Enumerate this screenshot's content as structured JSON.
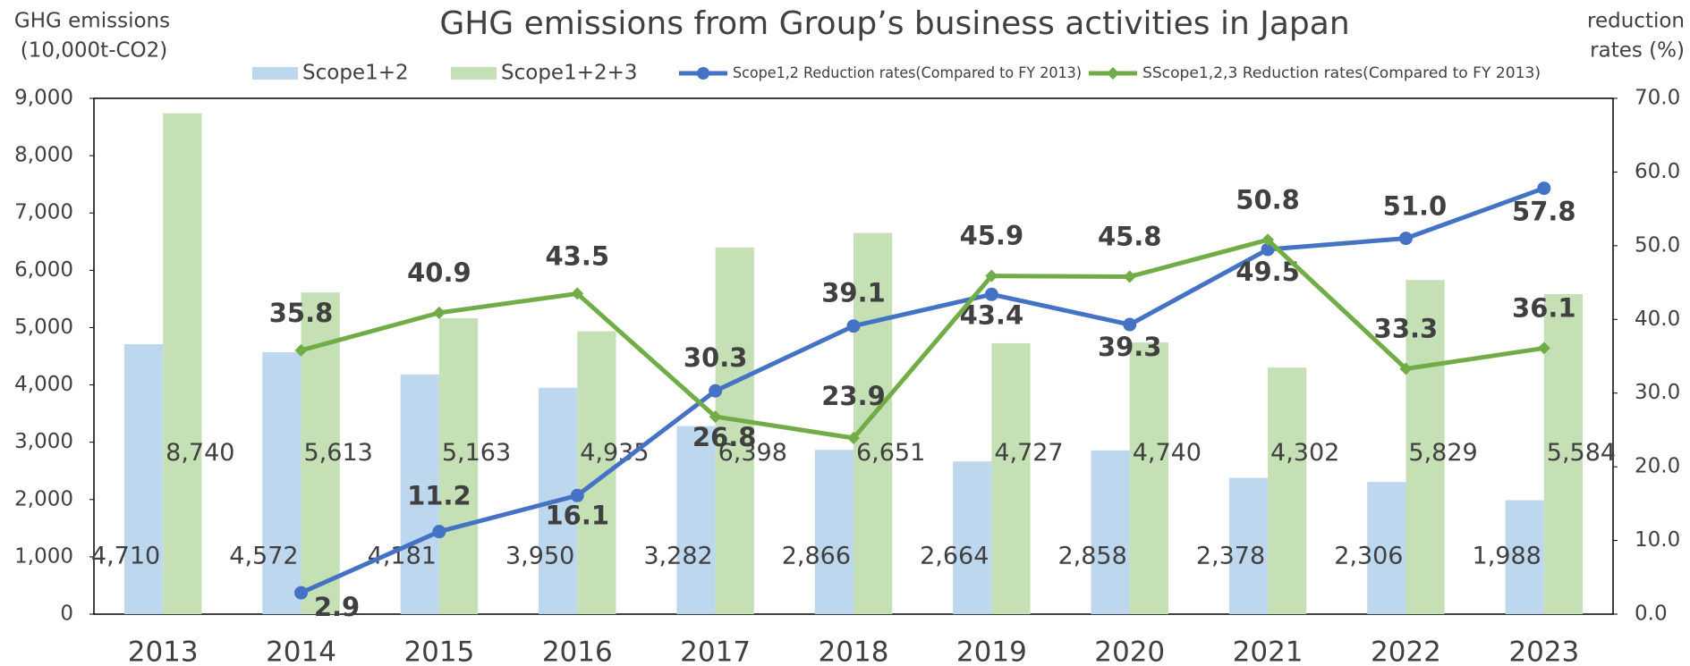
{
  "chart_data": {
    "type": "bar_line",
    "title": "GHG emissions from Group’s business activities in Japan",
    "ylabel": [
      "GHG emissions",
      "(10,000t-CO2)"
    ],
    "y2label": [
      "reduction",
      "rates (%)"
    ],
    "categories": [
      "2013",
      "2014",
      "2015",
      "2016",
      "2017",
      "2018",
      "2019",
      "2020",
      "2021",
      "2022",
      "2023"
    ],
    "series": [
      {
        "name": "Scope1+2",
        "type": "bar",
        "color": "#bdd7ee",
        "label_color": "#404040",
        "values": [
          4710,
          4572,
          4181,
          3950,
          3282,
          2866,
          2664,
          2858,
          2378,
          2306,
          1988
        ],
        "value_labels": [
          "4,710",
          "4,572",
          "4,181",
          "3,950",
          "3,282",
          "2,866",
          "2,664",
          "2,858",
          "2,378",
          "2,306",
          "1,988"
        ]
      },
      {
        "name": "Scope1+2+3",
        "type": "bar",
        "color": "#c5e0b4",
        "label_color": "#404040",
        "values": [
          8740,
          5613,
          5163,
          4935,
          6398,
          6651,
          4727,
          4740,
          4302,
          5829,
          5584
        ],
        "value_labels": [
          "8,740",
          "5,613",
          "5,163",
          "4,935",
          "6,398",
          "6,651",
          "4,727",
          "4,740",
          "4,302",
          "5,829",
          "5,584"
        ]
      },
      {
        "name": "Scope1,2 Reduction rates(Compared to FY 2013)",
        "type": "line",
        "axis": "y2",
        "marker": "circle",
        "color": "#4472c4",
        "label_color": "#2f5597",
        "values": [
          null,
          2.9,
          11.2,
          16.1,
          30.3,
          39.1,
          43.4,
          39.3,
          49.5,
          51.0,
          57.8
        ],
        "value_labels": [
          null,
          "2.9",
          "11.2",
          "16.1",
          "30.3",
          "39.1",
          "43.4",
          "39.3",
          "49.5",
          "51.0",
          "57.8"
        ]
      },
      {
        "name": "SScope1,2,3 Reduction rates(Compared to FY 2013)",
        "type": "line",
        "axis": "y2",
        "marker": "diamond",
        "color": "#70ad47",
        "label_color": "#548235",
        "values": [
          null,
          35.8,
          40.9,
          43.5,
          26.8,
          23.9,
          45.9,
          45.8,
          50.8,
          33.3,
          36.1
        ],
        "value_labels": [
          null,
          "35.8",
          "40.9",
          "43.5",
          "26.8",
          "23.9",
          "45.9",
          "45.8",
          "50.8",
          "33.3",
          "36.1"
        ]
      }
    ],
    "ylim": [
      0,
      9000
    ],
    "yticks": [
      0,
      {
        "value": 1000,
        "label": "1,000"
      },
      {
        "value": 2000,
        "label": "2,000"
      },
      {
        "value": 3000,
        "label": "3,000"
      },
      {
        "value": 4000,
        "label": "4,000"
      },
      {
        "value": 5000,
        "label": "5,000"
      },
      {
        "value": 6000,
        "label": "6,000"
      },
      {
        "value": 7000,
        "label": "7,000"
      },
      {
        "value": 8000,
        "label": "8,000"
      },
      {
        "value": 9000,
        "label": "9,000"
      }
    ],
    "y2lim": [
      0,
      70
    ],
    "y2ticks": [
      {
        "value": 0,
        "label": "0.0"
      },
      {
        "value": 10,
        "label": "10.0"
      },
      {
        "value": 20,
        "label": "20.0"
      },
      {
        "value": 30,
        "label": "30.0"
      },
      {
        "value": 40,
        "label": "40.0"
      },
      {
        "value": 50,
        "label": "50.0"
      },
      {
        "value": 60,
        "label": "60.0"
      },
      {
        "value": 70,
        "label": "70.0"
      }
    ],
    "legend": "top",
    "grid": false
  }
}
